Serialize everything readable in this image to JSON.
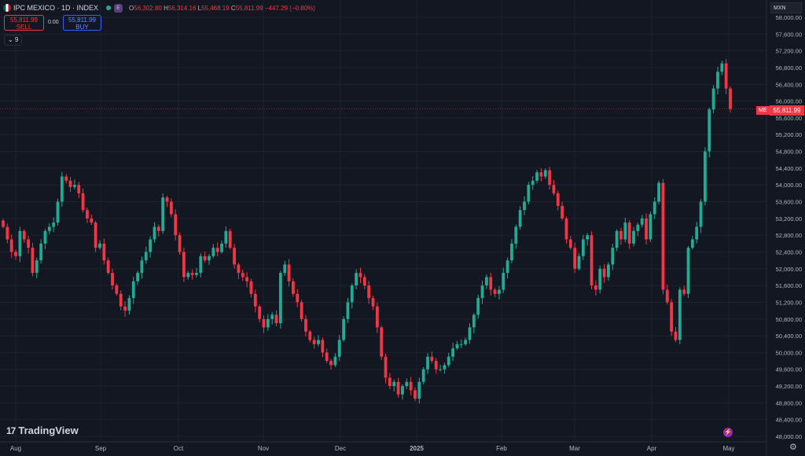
{
  "header": {
    "symbol": "IPC MEXICO · 1D · INDEX",
    "e_badge": "E",
    "ohlc": [
      {
        "k": "O",
        "v": "56,302.80"
      },
      {
        "k": "H",
        "v": "56,314.16"
      },
      {
        "k": "L",
        "v": "55,468.19"
      },
      {
        "k": "C",
        "v": "55,811.99"
      },
      {
        "k": "",
        "v": "−447.29 (−0.80%)"
      }
    ]
  },
  "trade": {
    "sell_price": "55,811.99",
    "sell_label": "SELL",
    "buy_price": "55,811.99",
    "buy_label": "BUY",
    "spread": "0.00"
  },
  "indicator_toggle": "9",
  "currency": "MXN",
  "last_price": "55,811.99",
  "last_price_tag": "ME",
  "brand": "TradingView",
  "colors": {
    "bg": "#131722",
    "up": "#22ab94",
    "down": "#f23645",
    "grid": "#1e222d",
    "text": "#b2b5be"
  },
  "chart_data": {
    "type": "candlestick",
    "x_labels": [
      "Aug",
      "Sep",
      "Oct",
      "Nov",
      "Dec",
      "2025",
      "Feb",
      "Mar",
      "Apr",
      "May"
    ],
    "y_ticks": [
      "58,000.00",
      "57,600.00",
      "57,200.00",
      "56,800.00",
      "56,400.00",
      "56,000.00",
      "55,600.00",
      "55,200.00",
      "54,800.00",
      "54,400.00",
      "54,000.00",
      "53,600.00",
      "53,200.00",
      "52,800.00",
      "52,400.00",
      "52,000.00",
      "51,600.00",
      "51,200.00",
      "50,800.00",
      "50,400.00",
      "50,000.00",
      "49,600.00",
      "49,200.00",
      "48,800.00",
      "48,400.00",
      "48,000.00"
    ],
    "ylim": [
      48000,
      58000
    ],
    "close": [
      53000,
      52700,
      52400,
      52300,
      52900,
      52700,
      52500,
      51900,
      52200,
      52600,
      52900,
      53000,
      53100,
      53600,
      54200,
      54100,
      53950,
      54000,
      53800,
      53400,
      53200,
      53100,
      52500,
      52600,
      52200,
      51900,
      51600,
      51400,
      51100,
      51000,
      51300,
      51700,
      51900,
      52200,
      52400,
      52700,
      53000,
      52900,
      53700,
      53600,
      53300,
      52800,
      52400,
      51800,
      51900,
      51850,
      51900,
      52300,
      52200,
      52300,
      52500,
      52400,
      52600,
      52900,
      52500,
      52100,
      51900,
      51800,
      51700,
      51400,
      51100,
      50800,
      50600,
      50800,
      50900,
      50700,
      51900,
      52100,
      51700,
      51400,
      51200,
      50800,
      50500,
      50300,
      50200,
      50300,
      50000,
      49800,
      49700,
      49900,
      50300,
      50800,
      51200,
      51600,
      51900,
      51800,
      51600,
      51300,
      51100,
      50600,
      49900,
      49400,
      49200,
      49300,
      49000,
      49200,
      49300,
      49100,
      48900,
      49300,
      49600,
      49900,
      49800,
      49600,
      49600,
      49700,
      49900,
      50100,
      50200,
      50200,
      50300,
      50600,
      50900,
      51300,
      51600,
      51800,
      51500,
      51400,
      51500,
      51900,
      52200,
      52600,
      53000,
      53400,
      53600,
      54000,
      54100,
      54300,
      54200,
      54350,
      54000,
      53800,
      53500,
      53200,
      52700,
      52500,
      52000,
      52300,
      52700,
      52800,
      51600,
      51500,
      52000,
      51800,
      52100,
      52500,
      52900,
      52700,
      53100,
      52600,
      52900,
      53050,
      53200,
      52700,
      53300,
      53600,
      54050,
      51500,
      51200,
      50500,
      50300,
      51500,
      51400,
      52500,
      52700,
      53000,
      53600,
      54800,
      55800,
      56300,
      56700,
      56900,
      56300,
      55811.99
    ],
    "note": "Daily OHLC candles of IPC MEXICO (1D) from late July to early May; values estimated from the plotted candles."
  }
}
